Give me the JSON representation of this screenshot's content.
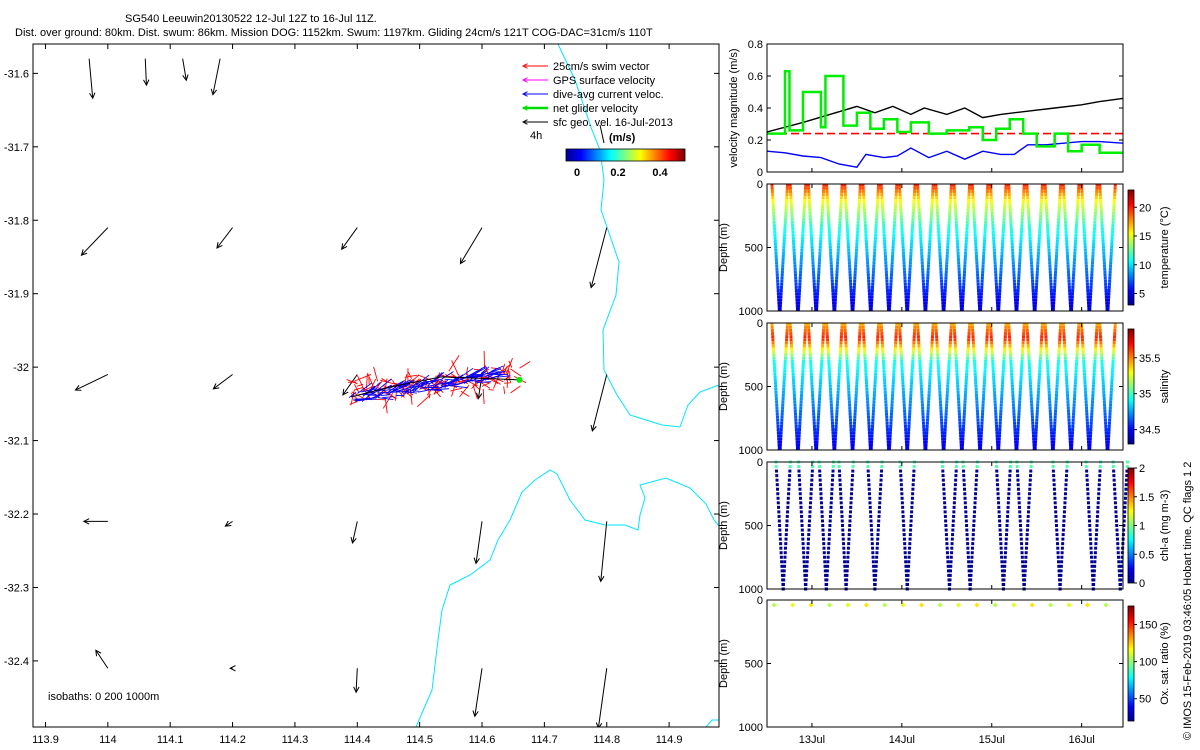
{
  "header": {
    "title": "SG540 Leeuwin20130522 12-Jul 12Z to 16-Jul 11Z.",
    "subtitle": "Dist. over ground: 80km. Dist. swum: 86km. Mission DOG: 1152km. Swum: 1197km. Gliding 24cm/s 121T COG-DAC=31cm/s 110T"
  },
  "side_note": "© IMOS 15-Feb-2019 03:46:05 Hobart time. QC flags 1  2",
  "chart_data": [
    {
      "id": "map",
      "type": "vector_map",
      "xlim": [
        113.88,
        114.98
      ],
      "ylim": [
        -32.49,
        -31.56
      ],
      "x_ticks": [
        113.9,
        114,
        114.1,
        114.2,
        114.3,
        114.4,
        114.5,
        114.6,
        114.7,
        114.8,
        114.9
      ],
      "x_tick_labels": [
        "113.9",
        "114",
        "114.1",
        "114.2",
        "114.3",
        "114.4",
        "114.5",
        "114.6",
        "114.7",
        "114.8",
        "114.9"
      ],
      "y_ticks": [
        -31.6,
        -31.7,
        -31.8,
        -31.9,
        -32,
        -32.1,
        -32.2,
        -32.3,
        -32.4
      ],
      "y_tick_labels": [
        "-31.6",
        "-31.7",
        "-31.8",
        "-31.9",
        "-32",
        "-32.1",
        "-32.2",
        "-32.3",
        "-32.4"
      ],
      "legend": {
        "position": "top-right",
        "entries": [
          {
            "label": "25cm/s swim vector",
            "color": "#ff0000"
          },
          {
            "label": "GPS surface velocity",
            "color": "#ff00ff"
          },
          {
            "label": "dive-avg current veloc.",
            "color": "#0000ff"
          },
          {
            "label": "net glider velocity",
            "color": "#00dd00"
          },
          {
            "label": "sfc geo. vel. 16-Jul-2013",
            "color": "#000000"
          }
        ]
      },
      "time_label": "4h",
      "colorbar": {
        "label": "(m/s)",
        "ticks": [
          "0",
          "0.2",
          "0.4"
        ],
        "range": [
          0,
          0.5
        ]
      },
      "isobaths_label": "isobaths: 0   200  1000m",
      "sfc_vectors": [
        {
          "lon": 113.97,
          "lat": -31.58,
          "u": 0.03,
          "v": -0.33
        },
        {
          "lon": 114.06,
          "lat": -31.58,
          "u": 0.01,
          "v": -0.22
        },
        {
          "lon": 114.12,
          "lat": -31.58,
          "u": 0.03,
          "v": -0.18
        },
        {
          "lon": 114.18,
          "lat": -31.58,
          "u": -0.06,
          "v": -0.3
        },
        {
          "lon": 114.0,
          "lat": -31.81,
          "u": -0.22,
          "v": -0.23
        },
        {
          "lon": 114.2,
          "lat": -31.81,
          "u": -0.13,
          "v": -0.17
        },
        {
          "lon": 114.4,
          "lat": -31.81,
          "u": -0.13,
          "v": -0.18
        },
        {
          "lon": 114.6,
          "lat": -31.81,
          "u": -0.18,
          "v": -0.3
        },
        {
          "lon": 114.8,
          "lat": -31.81,
          "u": -0.13,
          "v": -0.5
        },
        {
          "lon": 114.0,
          "lat": -32.01,
          "u": -0.27,
          "v": -0.13
        },
        {
          "lon": 114.2,
          "lat": -32.01,
          "u": -0.16,
          "v": -0.12
        },
        {
          "lon": 114.4,
          "lat": -32.01,
          "u": -0.12,
          "v": -0.17
        },
        {
          "lon": 114.6,
          "lat": -32.01,
          "u": -0.03,
          "v": -0.2
        },
        {
          "lon": 114.8,
          "lat": -32.01,
          "u": -0.12,
          "v": -0.47
        },
        {
          "lon": 114.0,
          "lat": -32.21,
          "u": -0.2,
          "v": 0.0
        },
        {
          "lon": 114.2,
          "lat": -32.21,
          "u": -0.06,
          "v": -0.04
        },
        {
          "lon": 114.4,
          "lat": -32.21,
          "u": -0.04,
          "v": -0.18
        },
        {
          "lon": 114.6,
          "lat": -32.21,
          "u": -0.05,
          "v": -0.35
        },
        {
          "lon": 114.8,
          "lat": -32.21,
          "u": -0.05,
          "v": -0.5
        },
        {
          "lon": 114.0,
          "lat": -32.41,
          "u": -0.1,
          "v": 0.15
        },
        {
          "lon": 114.2,
          "lat": -32.41,
          "u": -0.02,
          "v": 0.0
        },
        {
          "lon": 114.4,
          "lat": -32.41,
          "u": -0.01,
          "v": -0.2
        },
        {
          "lon": 114.6,
          "lat": -32.41,
          "u": -0.06,
          "v": -0.4
        },
        {
          "lon": 114.8,
          "lat": -32.41,
          "u": -0.07,
          "v": -0.5
        }
      ],
      "glider_track": {
        "lon_start": 114.39,
        "lon_end": 114.66,
        "lat_center": -32.02
      }
    },
    {
      "id": "velocity",
      "type": "line",
      "ylabel": "velocity magnitude (m/s)",
      "ylim": [
        0,
        0.8
      ],
      "y_ticks": [
        0,
        0.2,
        0.4,
        0.6,
        0.8
      ],
      "y_tick_labels": [
        "0",
        "0.2",
        "0.4",
        "0.6",
        "0.8"
      ],
      "xlim": [
        12.5,
        16.46
      ],
      "series": [
        {
          "name": "red_dashed",
          "color": "#ff0000",
          "dash": true,
          "x": [
            12.5,
            16.46
          ],
          "y": [
            0.24,
            0.24
          ]
        },
        {
          "name": "black",
          "color": "#000000",
          "x": [
            12.5,
            12.9,
            13.2,
            13.5,
            13.7,
            13.9,
            14.1,
            14.25,
            14.5,
            14.7,
            14.9,
            15.1,
            15.4,
            15.7,
            16.0,
            16.2,
            16.46
          ],
          "y": [
            0.25,
            0.31,
            0.36,
            0.41,
            0.37,
            0.41,
            0.36,
            0.4,
            0.36,
            0.4,
            0.34,
            0.36,
            0.38,
            0.4,
            0.42,
            0.44,
            0.46
          ]
        },
        {
          "name": "blue",
          "color": "#0000ff",
          "x": [
            12.5,
            12.7,
            12.9,
            13.1,
            13.3,
            13.5,
            13.6,
            13.8,
            13.95,
            14.1,
            14.3,
            14.5,
            14.7,
            14.9,
            15.1,
            15.25,
            15.4,
            15.6,
            15.8,
            16.0,
            16.2,
            16.46
          ],
          "y": [
            0.13,
            0.12,
            0.1,
            0.09,
            0.05,
            0.03,
            0.11,
            0.09,
            0.1,
            0.15,
            0.09,
            0.13,
            0.08,
            0.13,
            0.11,
            0.11,
            0.17,
            0.17,
            0.18,
            0.19,
            0.19,
            0.18
          ]
        },
        {
          "name": "green",
          "color": "#00ee00",
          "x": [
            12.5,
            12.7,
            12.7,
            12.75,
            12.75,
            12.9,
            12.9,
            13.1,
            13.1,
            13.15,
            13.15,
            13.35,
            13.35,
            13.5,
            13.5,
            13.65,
            13.65,
            13.8,
            13.8,
            13.95,
            13.95,
            14.1,
            14.1,
            14.3,
            14.3,
            14.5,
            14.5,
            14.75,
            14.75,
            14.9,
            14.9,
            15.05,
            15.05,
            15.2,
            15.2,
            15.35,
            15.35,
            15.5,
            15.5,
            15.7,
            15.7,
            15.85,
            15.85,
            16.0,
            16.0,
            16.2,
            16.2,
            16.46
          ],
          "y": [
            0.24,
            0.24,
            0.63,
            0.63,
            0.26,
            0.26,
            0.5,
            0.5,
            0.28,
            0.28,
            0.6,
            0.6,
            0.29,
            0.29,
            0.37,
            0.37,
            0.27,
            0.27,
            0.33,
            0.33,
            0.25,
            0.25,
            0.31,
            0.31,
            0.24,
            0.24,
            0.26,
            0.26,
            0.28,
            0.28,
            0.2,
            0.2,
            0.27,
            0.27,
            0.33,
            0.33,
            0.24,
            0.24,
            0.16,
            0.16,
            0.24,
            0.24,
            0.13,
            0.13,
            0.17,
            0.17,
            0.12,
            0.12
          ]
        }
      ]
    },
    {
      "id": "temperature",
      "type": "scatter_section",
      "ylabel": "Depth (m)",
      "y_tick_labels": [
        "0",
        "500",
        "1000"
      ],
      "colorbar_label": "temperature (°C)",
      "colorbar_ticks": [
        "5",
        "10",
        "15",
        "20"
      ],
      "colorbar_range": [
        3,
        23
      ],
      "dives": 19,
      "variable": "temperature"
    },
    {
      "id": "salinity",
      "type": "scatter_section",
      "ylabel": "Depth (m)",
      "y_tick_labels": [
        "0",
        "500",
        "1000"
      ],
      "colorbar_label": "salinity",
      "colorbar_ticks": [
        "34.5",
        "35",
        "35.5"
      ],
      "colorbar_range": [
        34.3,
        35.9
      ],
      "dives": 19,
      "variable": "salinity"
    },
    {
      "id": "chla",
      "type": "scatter_section",
      "ylabel": "Depth (m)",
      "y_tick_labels": [
        "0",
        "500",
        "1000"
      ],
      "colorbar_label": "chl-a (mg m-3)",
      "colorbar_ticks": [
        "0",
        "0.5",
        "1",
        "1.5",
        "2"
      ],
      "colorbar_range": [
        0,
        2
      ],
      "dives": 13,
      "variable": "chla"
    },
    {
      "id": "oxygen",
      "type": "scatter_section",
      "ylabel": "Depth (m)",
      "y_tick_labels": [
        "0",
        "500",
        "1000"
      ],
      "colorbar_label": "Ox. sat. ratio (%)",
      "colorbar_ticks": [
        "50",
        "100",
        "150"
      ],
      "colorbar_range": [
        20,
        175
      ],
      "dives": 19,
      "variable": "oxygen"
    }
  ],
  "time_axis": {
    "ticks": [
      13,
      14,
      15,
      16
    ],
    "tick_labels": [
      "13Jul",
      "14Jul",
      "15Jul",
      "16Jul"
    ],
    "range": [
      12.5,
      16.46
    ]
  }
}
